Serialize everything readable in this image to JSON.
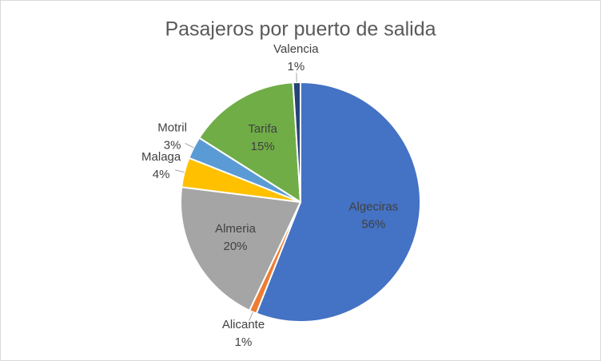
{
  "chart_data": {
    "type": "pie",
    "title": "Pasajeros por puerto de salida",
    "categories": [
      "Algeciras",
      "Alicante",
      "Almeria",
      "Malaga",
      "Motril",
      "Tarifa",
      "Valencia"
    ],
    "values": [
      56,
      1,
      20,
      4,
      3,
      15,
      1
    ],
    "value_labels": [
      "56%",
      "1%",
      "20%",
      "4%",
      "3%",
      "15%",
      "1%"
    ],
    "colors": [
      "#4472c4",
      "#ed7d31",
      "#a5a5a5",
      "#ffc000",
      "#5b9bd5",
      "#70ad47",
      "#264478"
    ]
  }
}
